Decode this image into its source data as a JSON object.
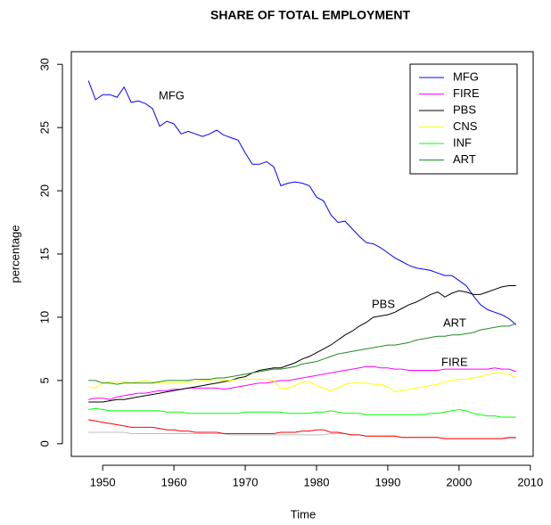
{
  "chart_data": {
    "type": "line",
    "title": "SHARE OF TOTAL EMPLOYMENT",
    "xlabel": "Time",
    "ylabel": "percentage",
    "x": [
      1948,
      1949,
      1950,
      1951,
      1952,
      1953,
      1954,
      1955,
      1956,
      1957,
      1958,
      1959,
      1960,
      1961,
      1962,
      1963,
      1964,
      1965,
      1966,
      1967,
      1968,
      1969,
      1970,
      1971,
      1972,
      1973,
      1974,
      1975,
      1976,
      1977,
      1978,
      1979,
      1980,
      1981,
      1982,
      1983,
      1984,
      1985,
      1986,
      1987,
      1988,
      1989,
      1990,
      1991,
      1992,
      1993,
      1994,
      1995,
      1996,
      1997,
      1998,
      1999,
      2000,
      2001,
      2002,
      2003,
      2004,
      2005,
      2006,
      2007,
      2008
    ],
    "xlim": [
      1945.6,
      2010.4
    ],
    "xticks": [
      1950,
      1960,
      1970,
      1980,
      1990,
      2000,
      2010
    ],
    "ylim": [
      -1,
      31
    ],
    "yticks": [
      0,
      5,
      10,
      15,
      20,
      25,
      30
    ],
    "legend": "topright",
    "series": [
      {
        "name": "MFG",
        "color": "#0000ff",
        "values": [
          28.7,
          27.2,
          27.6,
          27.6,
          27.4,
          28.2,
          27.0,
          27.1,
          26.9,
          26.5,
          25.1,
          25.5,
          25.3,
          24.5,
          24.7,
          24.5,
          24.3,
          24.5,
          24.8,
          24.4,
          24.2,
          24.0,
          23.0,
          22.1,
          22.1,
          22.3,
          21.9,
          20.4,
          20.6,
          20.7,
          20.6,
          20.4,
          19.5,
          19.2,
          18.1,
          17.5,
          17.6,
          17.0,
          16.4,
          15.9,
          15.8,
          15.5,
          15.1,
          14.7,
          14.4,
          14.1,
          13.9,
          13.8,
          13.7,
          13.5,
          13.3,
          13.3,
          12.9,
          12.5,
          11.7,
          11.0,
          10.6,
          10.4,
          10.2,
          9.9,
          9.4
        ]
      },
      {
        "name": "FIRE",
        "color": "#ff00ff",
        "values": [
          3.5,
          3.6,
          3.6,
          3.5,
          3.7,
          3.8,
          3.9,
          4.0,
          4.0,
          4.1,
          4.2,
          4.2,
          4.3,
          4.3,
          4.4,
          4.4,
          4.4,
          4.4,
          4.4,
          4.3,
          4.4,
          4.5,
          4.6,
          4.7,
          4.8,
          4.8,
          4.9,
          5.0,
          5.0,
          5.1,
          5.2,
          5.3,
          5.4,
          5.5,
          5.6,
          5.7,
          5.8,
          5.9,
          6.0,
          6.1,
          6.1,
          6.0,
          6.0,
          5.9,
          5.9,
          5.8,
          5.8,
          5.8,
          5.8,
          5.8,
          5.9,
          5.9,
          5.9,
          5.9,
          5.9,
          5.9,
          5.9,
          6.0,
          5.9,
          5.9,
          5.7
        ]
      },
      {
        "name": "PBS",
        "color": "#000000",
        "values": [
          3.3,
          3.3,
          3.3,
          3.4,
          3.5,
          3.5,
          3.6,
          3.7,
          3.8,
          3.9,
          4.0,
          4.1,
          4.2,
          4.3,
          4.4,
          4.5,
          4.6,
          4.7,
          4.8,
          4.9,
          5.0,
          5.2,
          5.3,
          5.6,
          5.8,
          5.9,
          6.0,
          6.0,
          6.2,
          6.4,
          6.7,
          6.9,
          7.2,
          7.5,
          7.8,
          8.2,
          8.6,
          8.9,
          9.3,
          9.6,
          10.0,
          10.1,
          10.2,
          10.4,
          10.7,
          11.0,
          11.2,
          11.5,
          11.8,
          12.0,
          11.6,
          11.9,
          12.1,
          12.0,
          11.8,
          11.8,
          12.0,
          12.2,
          12.4,
          12.5,
          12.5
        ]
      },
      {
        "name": "CNS",
        "color": "#ffff00",
        "values": [
          4.5,
          4.4,
          4.8,
          4.9,
          4.9,
          4.9,
          4.8,
          4.9,
          5.0,
          4.9,
          4.8,
          4.8,
          4.8,
          4.8,
          4.9,
          4.9,
          5.0,
          5.0,
          5.1,
          5.0,
          5.0,
          5.1,
          5.1,
          5.1,
          5.1,
          5.1,
          5.0,
          4.4,
          4.4,
          4.6,
          4.9,
          4.9,
          4.6,
          4.4,
          4.2,
          4.4,
          4.7,
          4.8,
          4.8,
          4.8,
          4.7,
          4.7,
          4.5,
          4.1,
          4.2,
          4.3,
          4.4,
          4.5,
          4.6,
          4.7,
          4.9,
          5.0,
          5.1,
          5.1,
          5.2,
          5.3,
          5.5,
          5.6,
          5.6,
          5.5,
          5.2
        ]
      },
      {
        "name": "INF",
        "color": "#00ff00",
        "values": [
          2.7,
          2.8,
          2.7,
          2.6,
          2.6,
          2.6,
          2.6,
          2.6,
          2.6,
          2.6,
          2.6,
          2.5,
          2.5,
          2.5,
          2.4,
          2.4,
          2.4,
          2.4,
          2.4,
          2.4,
          2.4,
          2.4,
          2.5,
          2.5,
          2.5,
          2.5,
          2.5,
          2.5,
          2.4,
          2.4,
          2.4,
          2.4,
          2.5,
          2.5,
          2.6,
          2.5,
          2.4,
          2.4,
          2.4,
          2.3,
          2.3,
          2.3,
          2.3,
          2.3,
          2.3,
          2.3,
          2.3,
          2.3,
          2.4,
          2.4,
          2.5,
          2.6,
          2.7,
          2.6,
          2.4,
          2.3,
          2.2,
          2.2,
          2.1,
          2.1,
          2.1
        ]
      },
      {
        "name": "ART",
        "color": "#228b22",
        "values": [
          5.0,
          5.0,
          4.8,
          4.8,
          4.7,
          4.8,
          4.8,
          4.8,
          4.8,
          4.8,
          4.9,
          5.0,
          5.0,
          5.0,
          5.0,
          5.1,
          5.1,
          5.1,
          5.2,
          5.2,
          5.3,
          5.4,
          5.5,
          5.6,
          5.7,
          5.8,
          5.9,
          5.9,
          6.0,
          6.1,
          6.3,
          6.4,
          6.5,
          6.7,
          6.9,
          7.1,
          7.2,
          7.3,
          7.4,
          7.5,
          7.6,
          7.7,
          7.8,
          7.8,
          7.9,
          8.0,
          8.2,
          8.3,
          8.4,
          8.5,
          8.5,
          8.6,
          8.6,
          8.7,
          8.8,
          9.0,
          9.1,
          9.2,
          9.3,
          9.3,
          9.5
        ]
      },
      {
        "color": "#bebebe",
        "values": [
          0.9,
          0.9,
          0.9,
          0.9,
          0.9,
          0.9,
          0.8,
          0.8,
          0.8,
          0.8,
          0.8,
          0.8,
          0.8,
          0.8,
          0.8,
          0.8,
          0.8,
          0.8,
          0.8,
          0.8,
          0.7,
          0.7,
          0.7,
          0.7,
          0.7,
          0.7,
          0.7,
          0.7,
          0.7,
          0.7,
          0.7,
          0.7,
          0.7,
          0.7,
          0.8,
          0.8,
          0.8,
          0.7,
          0.7,
          0.6,
          0.6,
          0.6,
          0.6,
          0.6,
          0.5,
          0.5,
          0.5,
          0.5,
          0.5,
          0.5,
          0.4,
          0.4,
          0.4,
          0.4,
          0.4,
          0.4,
          0.4,
          0.4,
          0.4,
          0.4,
          0.4
        ]
      },
      {
        "color": "#ff0000",
        "values": [
          1.9,
          1.8,
          1.7,
          1.6,
          1.5,
          1.4,
          1.3,
          1.3,
          1.3,
          1.3,
          1.2,
          1.1,
          1.1,
          1.0,
          1.0,
          0.9,
          0.9,
          0.9,
          0.9,
          0.8,
          0.8,
          0.8,
          0.8,
          0.8,
          0.8,
          0.8,
          0.8,
          0.9,
          0.9,
          0.9,
          1.0,
          1.0,
          1.1,
          1.1,
          0.9,
          0.9,
          0.8,
          0.7,
          0.7,
          0.6,
          0.6,
          0.6,
          0.6,
          0.6,
          0.5,
          0.5,
          0.5,
          0.5,
          0.5,
          0.5,
          0.4,
          0.4,
          0.4,
          0.4,
          0.4,
          0.4,
          0.4,
          0.4,
          0.4,
          0.5,
          0.5
        ]
      }
    ],
    "annotations": [
      "MFG",
      "PBS",
      "ART",
      "FIRE"
    ]
  }
}
